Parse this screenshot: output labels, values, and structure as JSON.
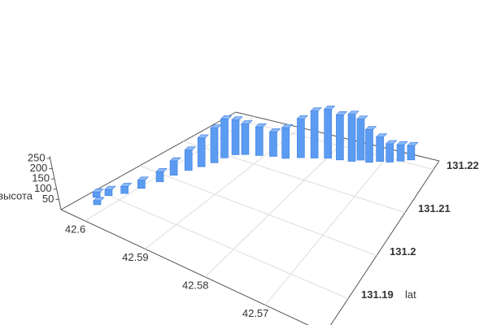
{
  "chart_data": {
    "type": "bar3d",
    "x_axis": {
      "ticks": [
        42.6,
        42.59,
        42.58,
        42.57
      ],
      "lim": [
        42.56,
        42.604
      ]
    },
    "y_axis": {
      "label": "lat",
      "ticks": [
        131.19,
        131.2,
        131.21,
        131.22
      ],
      "lim": [
        131.182,
        131.222
      ]
    },
    "z_axis": {
      "label": "высота",
      "ticks": [
        50,
        100,
        150,
        200,
        250
      ],
      "lim": [
        0,
        250
      ]
    },
    "color": "#5b9cf2",
    "grid": true,
    "series": [
      {
        "x": [
          42.6014,
          42.6027,
          42.6018,
          42.6005,
          42.5996,
          42.5987,
          42.5983,
          42.5974,
          42.5965,
          42.5956,
          42.5952,
          42.5943,
          42.593,
          42.5908,
          42.5886,
          42.5864,
          42.5842,
          42.582,
          42.5798,
          42.5776,
          42.5754,
          42.5741,
          42.5723,
          42.5706,
          42.5688,
          42.567,
          42.5653
        ],
        "y": [
          131.1868,
          131.1884,
          131.19,
          131.192,
          131.1948,
          131.198,
          131.2008,
          131.2032,
          131.2052,
          131.2072,
          131.2092,
          131.2108,
          131.2116,
          131.2124,
          131.2132,
          131.2136,
          131.2148,
          131.2156,
          131.2164,
          131.2168,
          131.2172,
          131.218,
          131.218,
          131.2188,
          131.2192,
          131.22,
          131.2208
        ],
        "values": [
          20,
          25,
          30,
          35,
          40,
          50,
          70,
          100,
          140,
          170,
          190,
          170,
          150,
          140,
          120,
          150,
          190,
          230,
          240,
          220,
          230,
          200,
          160,
          120,
          90,
          80,
          70
        ]
      }
    ]
  }
}
